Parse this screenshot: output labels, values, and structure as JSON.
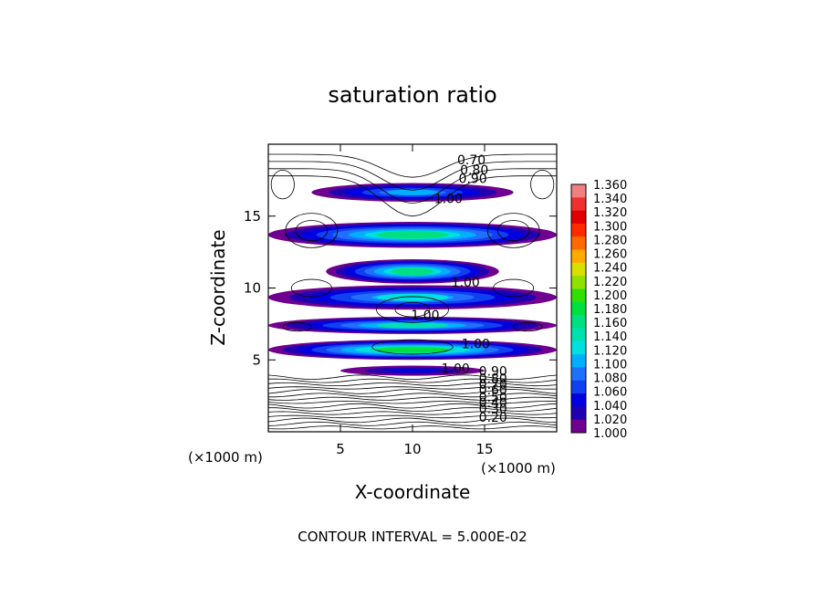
{
  "chart_data": {
    "type": "heatmap",
    "title": "saturation ratio",
    "xlabel": "X-coordinate",
    "ylabel": "Z-coordinate",
    "x_unit": "(×1000 m)",
    "z_unit": "(×1000 m)",
    "xlim": [
      0,
      20
    ],
    "ylim": [
      0,
      20
    ],
    "x_ticks": [
      "5",
      "10",
      "15"
    ],
    "y_ticks": [
      "5",
      "10",
      "15"
    ],
    "footer": "CONTOUR INTERVAL = 5.000E-02",
    "colorbar": {
      "labels": [
        "1.360",
        "1.340",
        "1.320",
        "1.300",
        "1.280",
        "1.260",
        "1.240",
        "1.220",
        "1.200",
        "1.180",
        "1.160",
        "1.140",
        "1.120",
        "1.100",
        "1.080",
        "1.060",
        "1.040",
        "1.020",
        "1.000"
      ],
      "colors": [
        "#f08080",
        "#f03030",
        "#e00000",
        "#ff2a00",
        "#ff6a00",
        "#ffaa00",
        "#d8e000",
        "#90e000",
        "#30e000",
        "#00e040",
        "#00e080",
        "#00e0b0",
        "#00e0e0",
        "#00b0ff",
        "#2070ff",
        "#1040f0",
        "#0000e0",
        "#2000b0",
        "#700090"
      ]
    },
    "contour_labels": [
      {
        "text": "0.70",
        "x": 13.1,
        "z": 18.6
      },
      {
        "text": "0.80",
        "x": 13.3,
        "z": 17.9
      },
      {
        "text": "0.90",
        "x": 13.2,
        "z": 17.3
      },
      {
        "text": "1.00",
        "x": 11.5,
        "z": 15.9
      },
      {
        "text": "1.00",
        "x": 12.7,
        "z": 10.1
      },
      {
        "text": "1.00",
        "x": 9.9,
        "z": 7.8
      },
      {
        "text": "1.00",
        "x": 13.4,
        "z": 5.8
      },
      {
        "text": "1.00",
        "x": 12.0,
        "z": 4.1
      },
      {
        "text": "0.90",
        "x": 14.6,
        "z": 3.9
      },
      {
        "text": "0.80",
        "x": 14.6,
        "z": 3.4
      },
      {
        "text": "0.70",
        "x": 14.6,
        "z": 3.0
      },
      {
        "text": "0.60",
        "x": 14.6,
        "z": 2.6
      },
      {
        "text": "0.50",
        "x": 14.6,
        "z": 2.1
      },
      {
        "text": "0.40",
        "x": 14.6,
        "z": 1.7
      },
      {
        "text": "0.30",
        "x": 14.6,
        "z": 1.3
      },
      {
        "text": "0.20",
        "x": 14.6,
        "z": 0.7
      }
    ],
    "bands": [
      {
        "x": [
          3,
          17
        ],
        "z": [
          16.0,
          17.3
        ],
        "max": 1.1
      },
      {
        "x": [
          0,
          20
        ],
        "z": [
          12.8,
          14.6
        ],
        "max": 1.16
      },
      {
        "x": [
          4,
          16
        ],
        "z": [
          10.3,
          12.0
        ],
        "max": 1.16
      },
      {
        "x": [
          0,
          20
        ],
        "z": [
          8.5,
          10.2
        ],
        "max": 1.12
      },
      {
        "x": [
          0,
          20
        ],
        "z": [
          6.8,
          8.0
        ],
        "max": 1.15
      },
      {
        "x": [
          0,
          20
        ],
        "z": [
          5.0,
          6.4
        ],
        "max": 1.18
      },
      {
        "x": [
          5,
          15
        ],
        "z": [
          3.9,
          4.6
        ],
        "max": 1.04
      }
    ]
  }
}
